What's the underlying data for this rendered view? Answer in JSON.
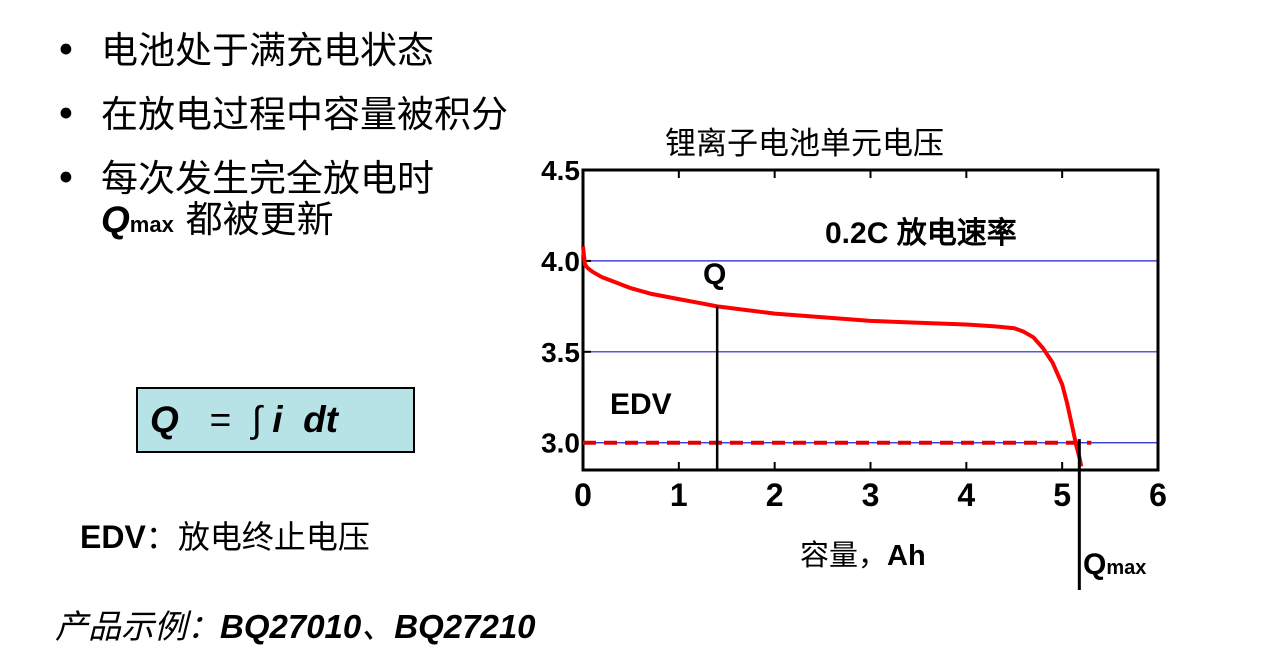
{
  "bullets": [
    {
      "text": "电池处于满充电状态"
    },
    {
      "text": "在放电过程中容量被积分"
    },
    {
      "text": "每次发生完全放电时",
      "q": "Q",
      "sub": "max",
      "rest": " 都被更新"
    }
  ],
  "formula": {
    "q": "Q",
    "eq": "=",
    "integral": "∫",
    "i": "i",
    "dt": "dt"
  },
  "edv_definition": {
    "term": "EDV",
    "sep": "：",
    "desc": "放电终止电压"
  },
  "example": {
    "label": "产品示例：",
    "p1": "BQ27010",
    "sep": "、",
    "p2": "BQ27210"
  },
  "chart_data": {
    "type": "line",
    "title": "锂离子电池单元电压",
    "xlabel": "容量，Ah",
    "ylabel": "",
    "xlim": [
      0,
      6
    ],
    "ylim": [
      2.85,
      4.5
    ],
    "x_ticks": [
      "0",
      "1",
      "2",
      "3",
      "4",
      "5",
      "6"
    ],
    "y_ticks": [
      "4.5",
      "4.0",
      "3.5",
      "3.0"
    ],
    "gridlines_y": [
      4.0,
      3.5,
      3.0
    ],
    "annotations": {
      "rate": "0.2C 放电速率",
      "q": "Q",
      "q_x": 1.4,
      "edv": "EDV",
      "edv_y": 3.0,
      "qmax": "Q",
      "qmax_sub": "max",
      "qmax_x": 5.2
    },
    "series": [
      {
        "color": "#ff0000",
        "x": [
          0,
          0.02,
          0.05,
          0.1,
          0.2,
          0.3,
          0.5,
          0.7,
          1.0,
          1.2,
          1.4,
          1.7,
          2.0,
          2.5,
          3.0,
          3.5,
          4.0,
          4.3,
          4.5,
          4.6,
          4.7,
          4.8,
          4.9,
          5.0,
          5.05,
          5.1,
          5.15,
          5.18,
          5.2
        ],
        "y": [
          4.08,
          3.98,
          3.96,
          3.94,
          3.91,
          3.89,
          3.85,
          3.82,
          3.79,
          3.77,
          3.75,
          3.73,
          3.71,
          3.69,
          3.67,
          3.66,
          3.65,
          3.64,
          3.63,
          3.61,
          3.58,
          3.52,
          3.44,
          3.32,
          3.22,
          3.1,
          2.98,
          2.92,
          2.87
        ]
      }
    ]
  }
}
